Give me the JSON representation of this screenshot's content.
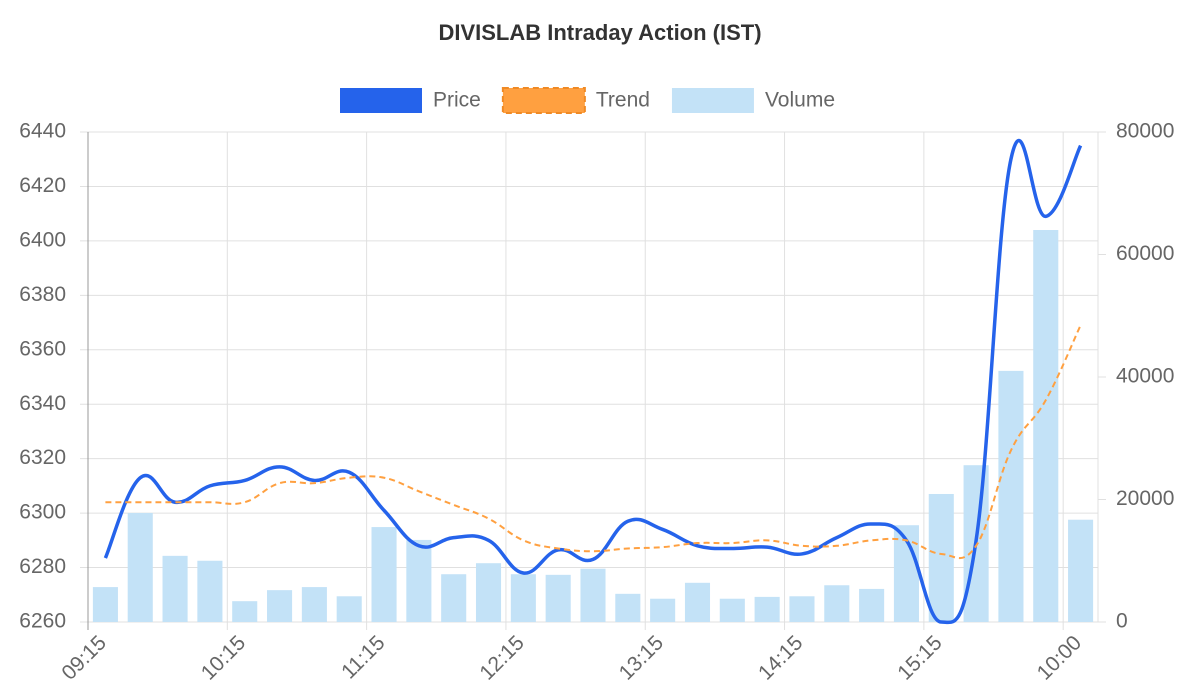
{
  "chart_data": {
    "type": "combo",
    "title": "DIVISLAB Intraday Action (IST)",
    "categories": [
      "09:15",
      null,
      null,
      null,
      "10:15",
      null,
      null,
      null,
      "11:15",
      null,
      null,
      null,
      "12:15",
      null,
      null,
      null,
      "13:15",
      null,
      null,
      null,
      "14:15",
      null,
      null,
      null,
      "15:15",
      null,
      null,
      null,
      "10:00"
    ],
    "series": [
      {
        "name": "Price",
        "type": "line",
        "color": "#2563eb",
        "dashed": false,
        "values": [
          6283.5,
          6313,
          6304,
          6310,
          6312,
          6317,
          6312,
          6315,
          6301,
          6288,
          6291,
          6290,
          6278,
          6286.5,
          6283,
          6297,
          6294,
          6288,
          6287,
          6287.5,
          6285,
          6291,
          6296,
          6290,
          6260,
          6290,
          6430,
          6409,
          6435
        ]
      },
      {
        "name": "Trend",
        "type": "line",
        "color": "#ffa040",
        "dashed": true,
        "values": [
          6304,
          6304,
          6304,
          6304,
          6304,
          6311,
          6311,
          6313,
          6313,
          6308,
          6303,
          6298,
          6290,
          6287,
          6286,
          6287,
          6287.5,
          6289,
          6289,
          6290,
          6288,
          6288,
          6290,
          6290,
          6285,
          6288,
          6323,
          6341.5,
          6369
        ]
      },
      {
        "name": "Volume",
        "type": "bar",
        "axis": "y2",
        "color": "#c3e2f7",
        "values": [
          5700,
          17800,
          10800,
          10000,
          3400,
          5200,
          5700,
          4200,
          15500,
          13400,
          7800,
          9600,
          7800,
          7700,
          8700,
          4600,
          3800,
          6400,
          3800,
          4100,
          4200,
          6000,
          5400,
          15800,
          20900,
          25600,
          41000,
          64000,
          16700
        ]
      }
    ],
    "ylim": [
      6260,
      6440
    ],
    "yticks": [
      6260,
      6280,
      6300,
      6320,
      6340,
      6360,
      6380,
      6400,
      6420,
      6440
    ],
    "y2lim": [
      0,
      80000
    ],
    "y2ticks": [
      0,
      20000,
      40000,
      60000,
      80000
    ],
    "grid": true,
    "legend": "top"
  }
}
